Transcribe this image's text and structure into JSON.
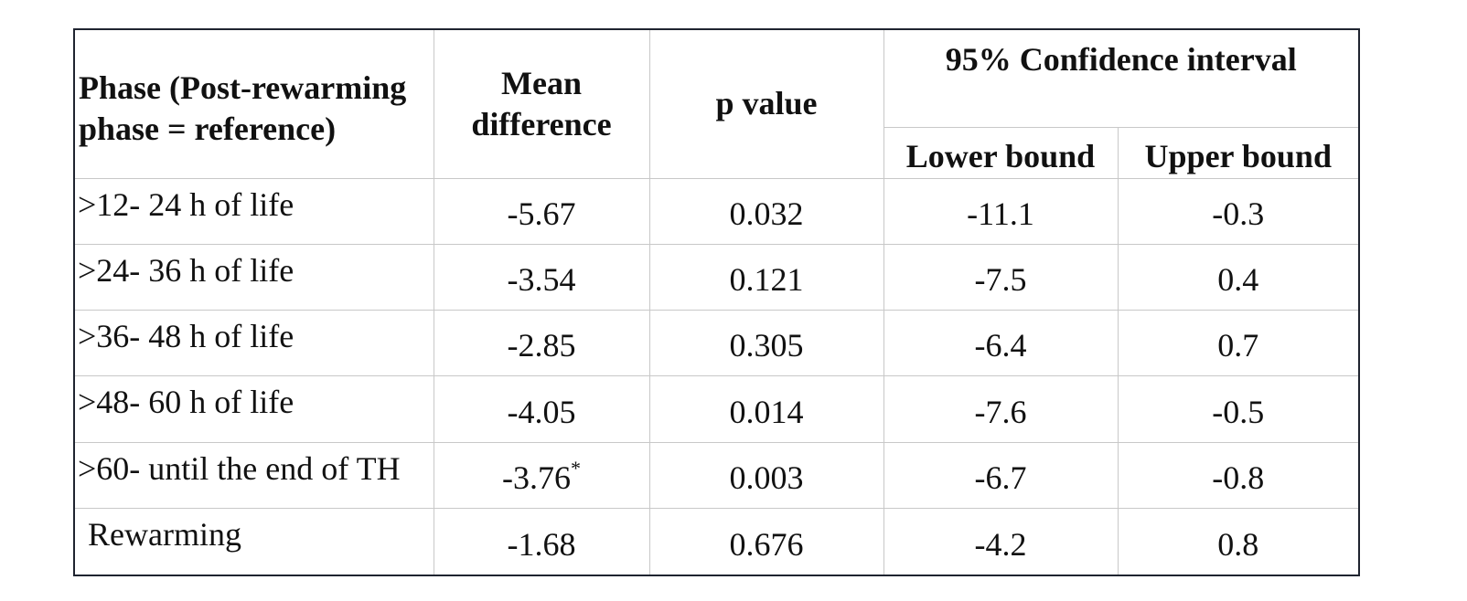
{
  "table": {
    "headers": {
      "phase": "Phase (Post-rewarming phase =  reference)",
      "mean_difference": "Mean difference",
      "p_value": "p value",
      "confidence_interval": "95% Confidence interval",
      "lower_bound": "Lower bound",
      "upper_bound": "Upper bound"
    },
    "rows": [
      {
        "phase": ">12- 24 h of life",
        "mean_difference": "-5.67",
        "footnote_mark": "",
        "p_value": "0.032",
        "lower_bound": "-11.1",
        "upper_bound": "-0.3"
      },
      {
        "phase": ">24- 36 h of life",
        "mean_difference": "-3.54",
        "footnote_mark": "",
        "p_value": "0.121",
        "lower_bound": "-7.5",
        "upper_bound": "0.4"
      },
      {
        "phase": ">36- 48 h of life",
        "mean_difference": "-2.85",
        "footnote_mark": "",
        "p_value": "0.305",
        "lower_bound": "-6.4",
        "upper_bound": "0.7"
      },
      {
        "phase": ">48- 60 h of life",
        "mean_difference": "-4.05",
        "footnote_mark": "",
        "p_value": "0.014",
        "lower_bound": "-7.6",
        "upper_bound": "-0.5"
      },
      {
        "phase": ">60- until the end of TH",
        "mean_difference": "-3.76",
        "footnote_mark": "*",
        "p_value": "0.003",
        "lower_bound": "-6.7",
        "upper_bound": "-0.8"
      },
      {
        "phase": "Rewarming",
        "mean_difference": "-1.68",
        "footnote_mark": "",
        "p_value": "0.676",
        "lower_bound": "-4.2",
        "upper_bound": "0.8"
      }
    ]
  }
}
